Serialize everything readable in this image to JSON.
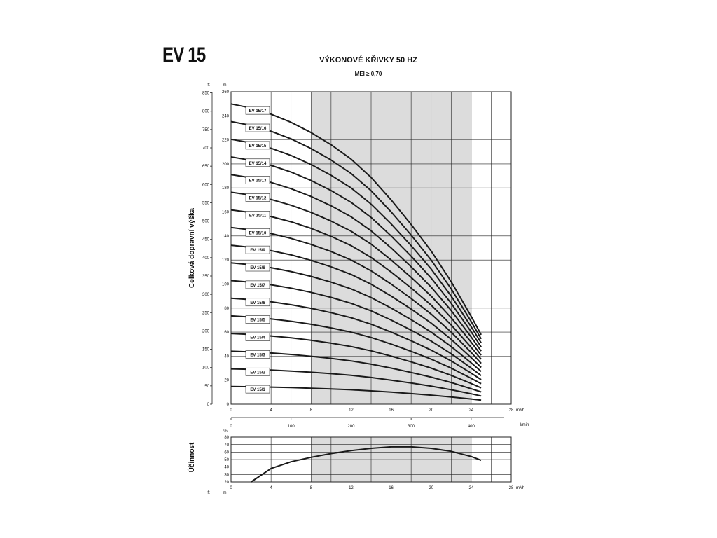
{
  "header": {
    "model": "EV 15",
    "title": "VÝKONOVÉ KŘIVKY 50 HZ",
    "subtitle": "MEI ≥ 0,70"
  },
  "colors": {
    "curve": "#1a1a1a",
    "grid": "#222222",
    "band": "#dcdcdc"
  },
  "chart_data": [
    {
      "type": "line",
      "title": "VÝKONOVÉ KŘIVKY 50 HZ",
      "subtitle": "MEI ≥ 0,70",
      "ylabel": "Celková dopravní výška",
      "y_unit": "m",
      "y2_unit": "ft",
      "x_unit": "m³/h",
      "x2_unit": "l/min",
      "xlim": [
        0,
        28
      ],
      "ylim": [
        0,
        260
      ],
      "x_ticks": [
        0,
        4,
        8,
        12,
        16,
        20,
        24,
        28
      ],
      "y_ticks": [
        0,
        20,
        40,
        60,
        80,
        100,
        120,
        140,
        160,
        180,
        200,
        220,
        240,
        260
      ],
      "ft_ticks": [
        0,
        50,
        100,
        150,
        200,
        250,
        300,
        350,
        400,
        450,
        500,
        550,
        600,
        650,
        700,
        750,
        800,
        850
      ],
      "lmin_ticks": [
        0,
        100,
        200,
        300,
        400
      ],
      "lmin_max": 466.67,
      "shaded_x": [
        8,
        24
      ],
      "grid": true,
      "x": [
        0,
        2,
        4,
        6,
        8,
        10,
        12,
        14,
        16,
        18,
        20,
        22,
        24,
        25
      ],
      "per_stage_head": [
        14.7,
        14.5,
        14.2,
        13.8,
        13.3,
        12.7,
        12.0,
        11.1,
        10.0,
        8.8,
        7.5,
        6.0,
        4.3,
        3.4
      ],
      "series": [
        {
          "name": "EV 15/1",
          "stages": 1
        },
        {
          "name": "EV 15/2",
          "stages": 2
        },
        {
          "name": "EV 15/3",
          "stages": 3
        },
        {
          "name": "EV 15/4",
          "stages": 4
        },
        {
          "name": "EV 15/5",
          "stages": 5
        },
        {
          "name": "EV 15/6",
          "stages": 6
        },
        {
          "name": "EV 15/7",
          "stages": 7
        },
        {
          "name": "EV 15/8",
          "stages": 8
        },
        {
          "name": "EV 15/9",
          "stages": 9
        },
        {
          "name": "EV 15/10",
          "stages": 10
        },
        {
          "name": "EV 15/11",
          "stages": 11
        },
        {
          "name": "EV 15/12",
          "stages": 12
        },
        {
          "name": "EV 15/13",
          "stages": 13
        },
        {
          "name": "EV 15/14",
          "stages": 14
        },
        {
          "name": "EV 15/15",
          "stages": 15
        },
        {
          "name": "EV 15/16",
          "stages": 16
        },
        {
          "name": "EV 15/17",
          "stages": 17
        }
      ]
    },
    {
      "type": "line",
      "ylabel": "Účinnost",
      "y_unit": "%",
      "x_unit": "m³/h",
      "xlim": [
        0,
        28
      ],
      "ylim": [
        20,
        80
      ],
      "x_ticks": [
        0,
        4,
        8,
        12,
        16,
        20,
        24,
        28
      ],
      "y_ticks": [
        20,
        30,
        40,
        50,
        60,
        70,
        80
      ],
      "shaded_x": [
        8,
        24
      ],
      "grid": true,
      "series": [
        {
          "x": [
            2,
            4,
            6,
            8,
            10,
            12,
            14,
            16,
            18,
            20,
            22,
            24,
            25
          ],
          "y": [
            20,
            38,
            47,
            53,
            58,
            62,
            65,
            67,
            67,
            65,
            61,
            54,
            49
          ]
        }
      ]
    }
  ]
}
